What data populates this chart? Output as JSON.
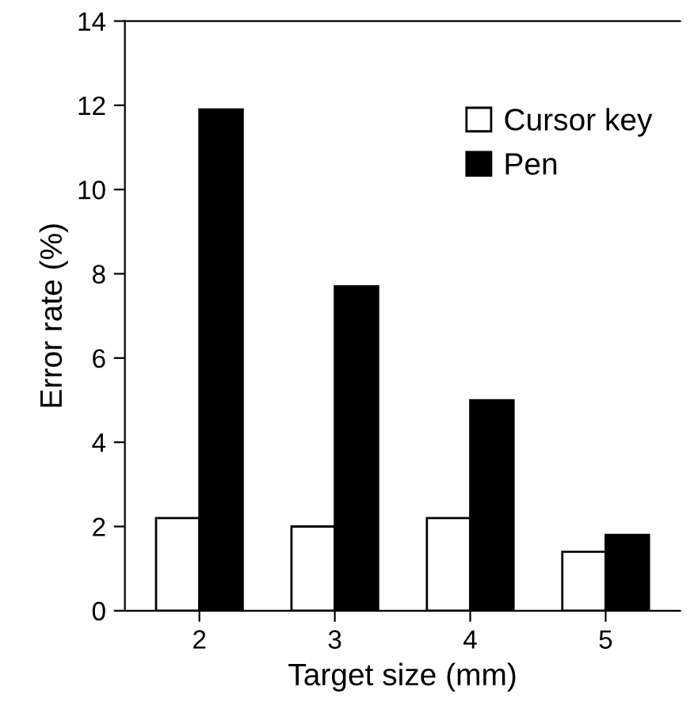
{
  "chart_data": {
    "type": "bar",
    "xlabel": "Target size (mm)",
    "ylabel": "Error rate (%)",
    "categories": [
      "2",
      "3",
      "4",
      "5"
    ],
    "series": [
      {
        "name": "Cursor key",
        "color": "#ffffff",
        "values": [
          2.2,
          2.0,
          2.2,
          1.4
        ]
      },
      {
        "name": "Pen",
        "color": "#000000",
        "values": [
          11.9,
          7.7,
          5.0,
          1.8
        ]
      }
    ],
    "ylim": [
      0,
      14
    ],
    "yticks": [
      0,
      2,
      4,
      6,
      8,
      10,
      12,
      14
    ],
    "grid": false,
    "legend": "top right"
  }
}
